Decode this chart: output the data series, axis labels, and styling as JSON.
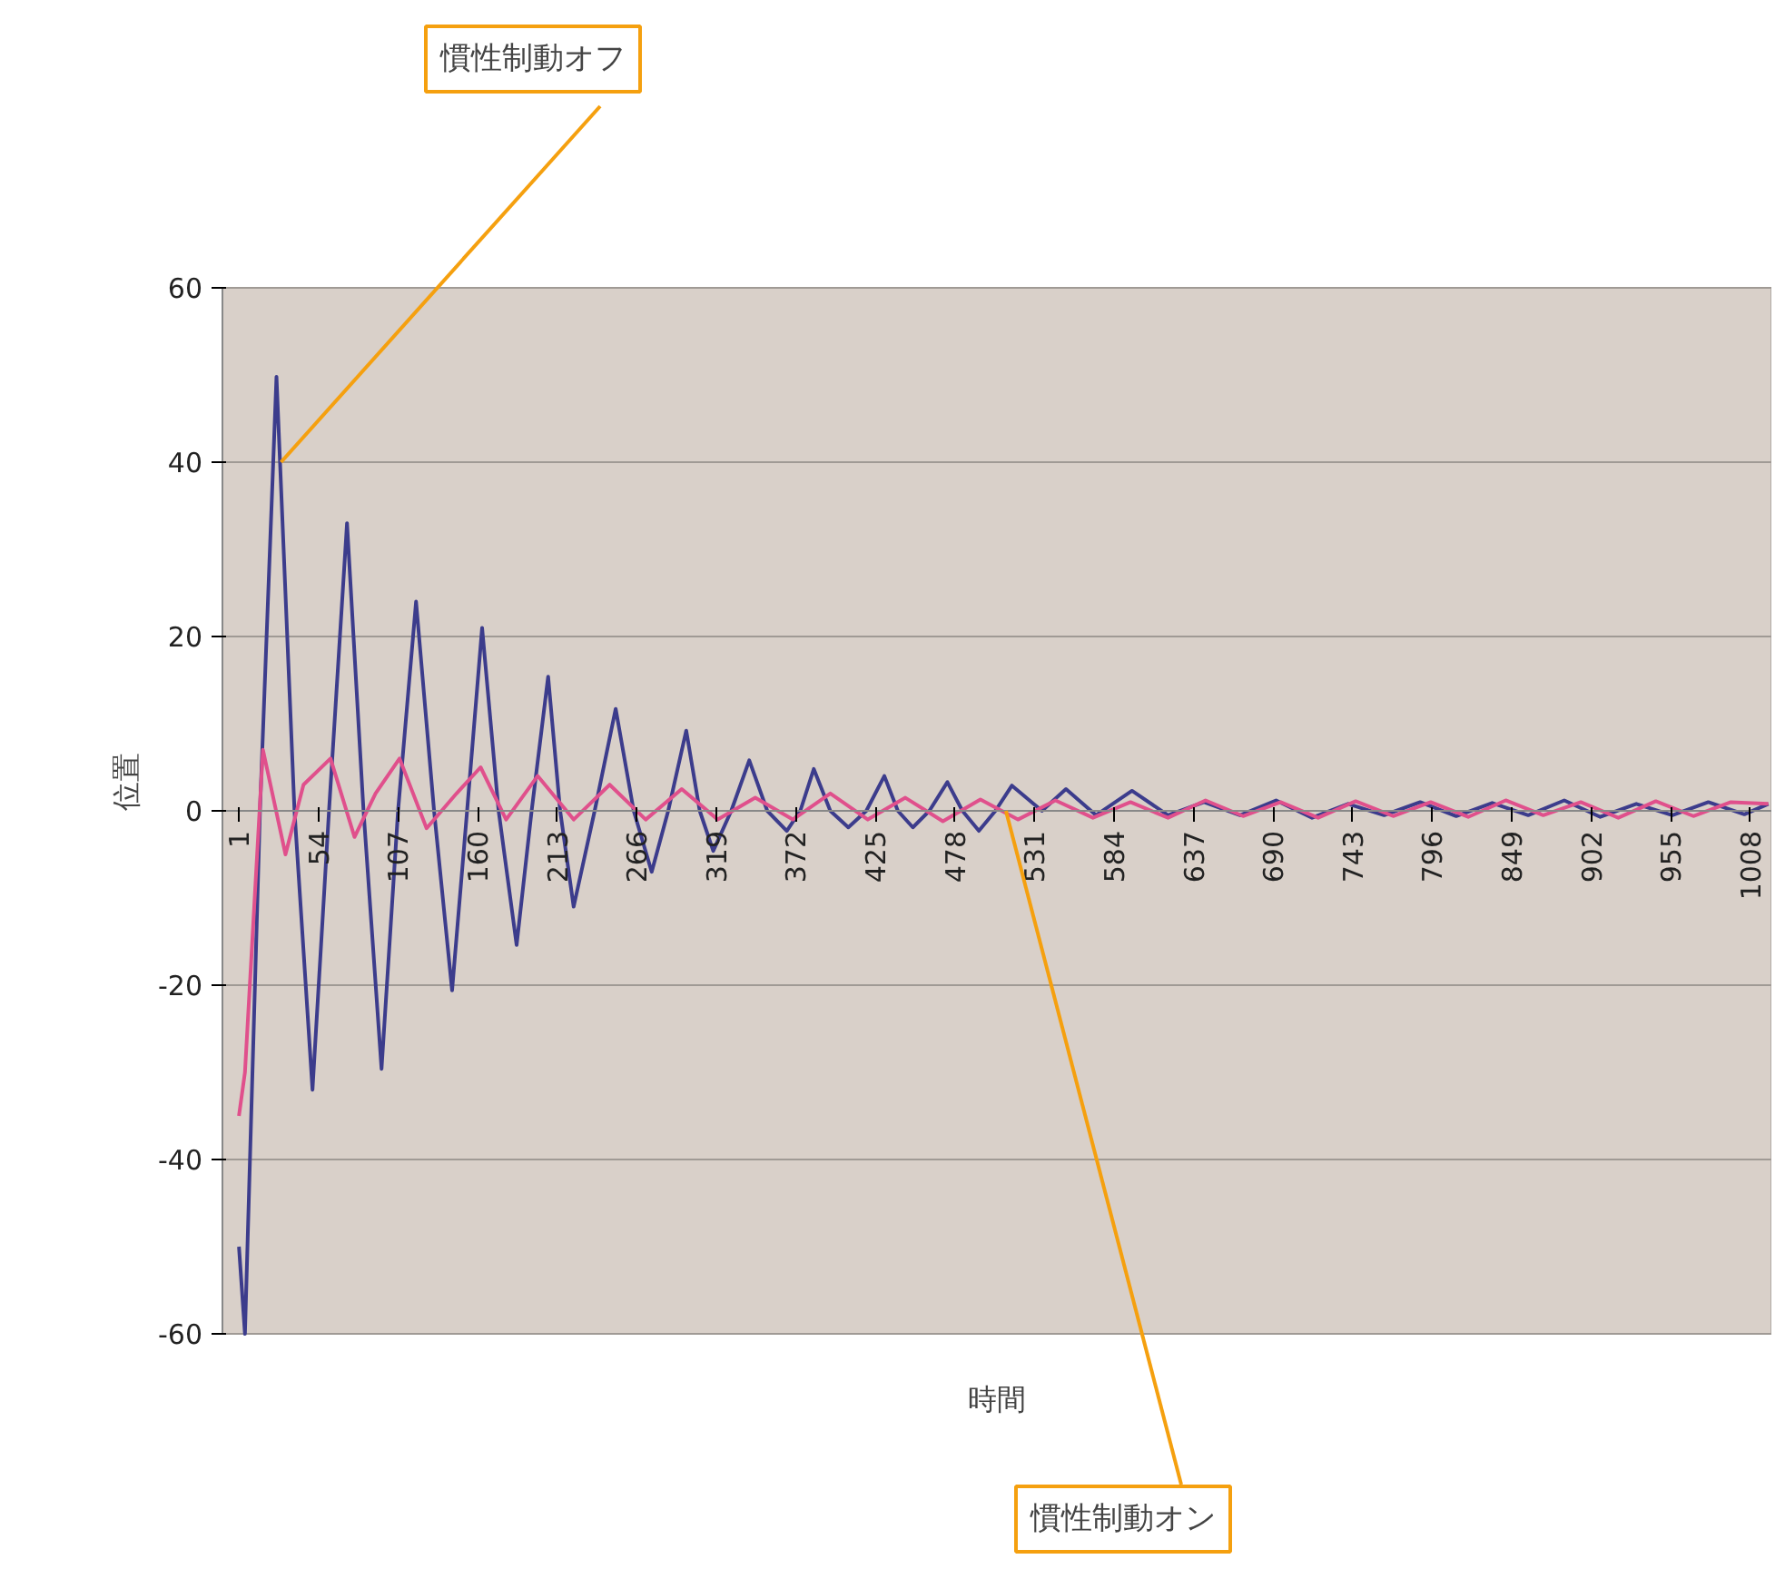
{
  "chart_data": {
    "type": "line",
    "xlabel": "時間",
    "ylabel": "位置",
    "xlim": [
      -10,
      1022
    ],
    "xticks": [
      1,
      54,
      107,
      160,
      213,
      266,
      319,
      372,
      425,
      478,
      531,
      584,
      637,
      690,
      743,
      796,
      849,
      902,
      955,
      1008
    ],
    "ylim": [
      -60,
      60
    ],
    "yticks": [
      -60,
      -40,
      -20,
      0,
      20,
      40,
      60
    ],
    "grid": "y",
    "marker": "none",
    "line_style": "solid",
    "series": [
      {
        "color": "#3c3c8c",
        "x": [
          1,
          5,
          15,
          26,
          38,
          50,
          61,
          73,
          84,
          96,
          107,
          119,
          131,
          143,
          153,
          163,
          174,
          186,
          196,
          207,
          215,
          224,
          238,
          252,
          264,
          276,
          287,
          299,
          308,
          317,
          329,
          341,
          353,
          366,
          375,
          384,
          395,
          407,
          419,
          431,
          440,
          450,
          461,
          473,
          483,
          494,
          505,
          516,
          536,
          552,
          572,
          596,
          620,
          644,
          668,
          692,
          716,
          740,
          764,
          788,
          812,
          836,
          860,
          884,
          908,
          932,
          956,
          980,
          1004,
          1020
        ],
        "values": [
          -50,
          -60,
          0,
          49.8,
          0,
          -32,
          0,
          33,
          0,
          -29.6,
          0,
          24,
          0,
          -20.6,
          0,
          21,
          0,
          -15.4,
          0,
          15.4,
          0,
          -11,
          0,
          11.7,
          0,
          -7,
          0,
          9.2,
          0,
          -4.6,
          0,
          5.8,
          0,
          -2.3,
          0,
          4.8,
          0,
          -1.9,
          0,
          4,
          0,
          -1.9,
          0,
          3.3,
          0,
          -2.3,
          0,
          2.9,
          0,
          2.5,
          -0.5,
          2.3,
          -0.5,
          1,
          -0.5,
          1.2,
          -0.8,
          0.8,
          -0.5,
          1,
          -0.6,
          0.9,
          -0.5,
          1.2,
          -0.7,
          0.8,
          -0.5,
          1,
          -0.4,
          0.8
        ]
      },
      {
        "color": "#e0508c",
        "x": [
          1,
          5,
          17,
          32,
          44,
          62,
          78,
          92,
          108,
          126,
          146,
          162,
          179,
          200,
          224,
          248,
          272,
          296,
          320,
          345,
          370,
          395,
          420,
          445,
          470,
          495,
          520,
          545,
          570,
          595,
          620,
          645,
          670,
          695,
          720,
          745,
          770,
          795,
          820,
          845,
          870,
          895,
          920,
          945,
          970,
          995,
          1020
        ],
        "values": [
          -35,
          -30,
          7,
          -5,
          3,
          6,
          -3,
          2,
          6,
          -2,
          2,
          5,
          -1,
          4,
          -1,
          3,
          -1,
          2.5,
          -1,
          1.5,
          -1,
          2,
          -1,
          1.5,
          -1.2,
          1.3,
          -1,
          1.2,
          -0.8,
          1,
          -0.8,
          1.2,
          -0.6,
          1,
          -0.8,
          1.1,
          -0.6,
          1,
          -0.7,
          1.2,
          -0.5,
          1,
          -0.8,
          1.1,
          -0.6,
          1,
          0.8
        ]
      }
    ],
    "annotations": [
      {
        "text": "慣性制動オフ",
        "x": 29,
        "y": 40
      },
      {
        "text": "慣性制動オン",
        "x": 512,
        "y": 0
      }
    ]
  }
}
